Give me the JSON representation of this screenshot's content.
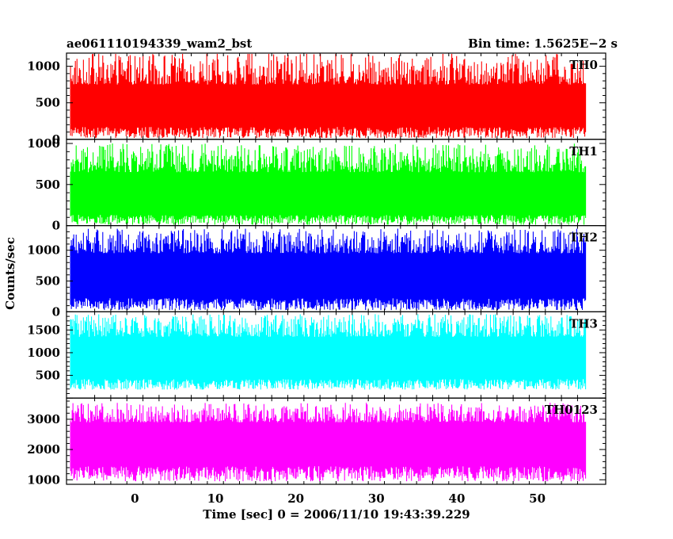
{
  "header": {
    "title_left": "ae061110194339_wam2_bst",
    "title_right": "Bin time: 1.5625E−2 s"
  },
  "chart_data": {
    "type": "line",
    "xlabel": "Time [sec] 0 = 2006/11/10 19:43:39.229",
    "ylabel": "Counts/sec",
    "xlim": [
      -8.5,
      58.5
    ],
    "x_range": [
      -8,
      56
    ],
    "x_ticks": [
      0,
      10,
      20,
      30,
      40,
      50
    ],
    "panels": [
      {
        "name": "TH0",
        "color": "#ff0000",
        "ylim": [
          0,
          1180
        ],
        "yticks": [
          0,
          500,
          1000
        ],
        "base": [
          20,
          170
        ],
        "peak": [
          750,
          1180
        ],
        "mean": 370
      },
      {
        "name": "TH1",
        "color": "#00ff00",
        "ylim": [
          0,
          1050
        ],
        "yticks": [
          0,
          500,
          1000
        ],
        "base": [
          10,
          130
        ],
        "peak": [
          650,
          1000
        ],
        "mean": 330
      },
      {
        "name": "TH2",
        "color": "#0000ff",
        "ylim": [
          0,
          1400
        ],
        "yticks": [
          0,
          500,
          1000
        ],
        "base": [
          30,
          220
        ],
        "peak": [
          950,
          1350
        ],
        "mean": 580
      },
      {
        "name": "TH3",
        "color": "#00ffff",
        "ylim": [
          0,
          1900
        ],
        "yticks": [
          500,
          1000,
          1500
        ],
        "base": [
          190,
          420
        ],
        "peak": [
          1350,
          1850
        ],
        "mean": 970
      },
      {
        "name": "TH0123",
        "color": "#ff00ff",
        "ylim": [
          850,
          3700
        ],
        "yticks": [
          1000,
          2000,
          3000
        ],
        "base": [
          950,
          1450
        ],
        "peak": [
          2900,
          3550
        ],
        "mean": 2300
      }
    ]
  }
}
